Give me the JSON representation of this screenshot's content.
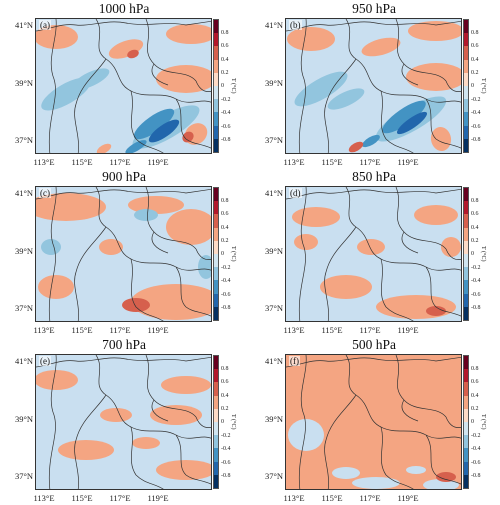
{
  "panels": [
    {
      "tag": "(a)",
      "title": "1000 hPa"
    },
    {
      "tag": "(b)",
      "title": "950 hPa"
    },
    {
      "tag": "(c)",
      "title": "900 hPa"
    },
    {
      "tag": "(d)",
      "title": "850 hPa"
    },
    {
      "tag": "(e)",
      "title": "700 hPa"
    },
    {
      "tag": "(f)",
      "title": "500 hPa"
    }
  ],
  "lat_ticks": [
    "41°N",
    "39°N",
    "37°N"
  ],
  "lon_ticks": [
    "113°E",
    "115°E",
    "117°E",
    "119°E"
  ],
  "colorbar": {
    "label": "T (°C)",
    "ticks": [
      "0.8",
      "0.6",
      "0.4",
      "0.2",
      "0",
      "-0.2",
      "-0.4",
      "-0.6",
      "-0.8"
    ],
    "colors": [
      "#67001f",
      "#b2182b",
      "#d6604d",
      "#f4a582",
      "#fddbc7",
      "#d1e5f0",
      "#92c5de",
      "#4393c3",
      "#2166ac",
      "#053061"
    ]
  }
}
